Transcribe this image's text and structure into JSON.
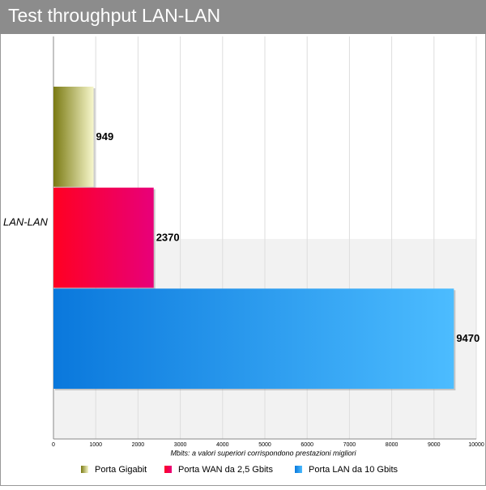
{
  "chart_data": {
    "type": "hbar",
    "title": "Test throughput LAN-LAN",
    "categories": [
      "LAN-LAN"
    ],
    "series": [
      {
        "name": "Porta Gigabit",
        "color": "#7a7a12",
        "values": [
          949
        ]
      },
      {
        "name": "Porta WAN da 2,5 Gbits",
        "color": "#ff0022",
        "values": [
          2370
        ]
      },
      {
        "name": "Porta LAN da 10 Gbits",
        "color": "#0a78dc",
        "values": [
          9470
        ]
      }
    ],
    "xlabel": "Mbits: a valori superiori corrispondono prestazioni migliori",
    "xlim": [
      0,
      10000
    ],
    "xticks": [
      0,
      1000,
      2000,
      3000,
      4000,
      5000,
      6000,
      7000,
      8000,
      9000,
      10000
    ],
    "grid": true,
    "legend": "bottom"
  }
}
